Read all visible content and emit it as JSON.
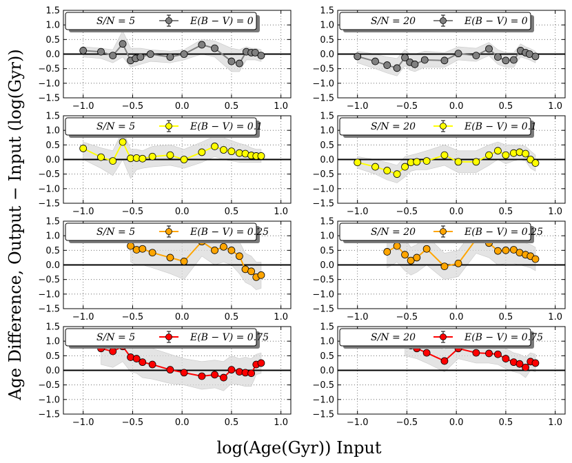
{
  "figure": {
    "ylabel": "Age Difference, Output − Input (log(Gyr))",
    "xlabel": "log(Age(Gyr)) Input"
  },
  "chart_data": [
    {
      "type": "line",
      "panel": "row1-left",
      "legend_sn": "S/N = 5",
      "legend_ebv": "E(B − V) = 0",
      "color": "#808080",
      "xlim": [
        -1.2,
        1.1
      ],
      "ylim": [
        -1.5,
        1.5
      ],
      "xticks": [
        "−1.0",
        "−0.5",
        "0.0",
        "0.5",
        "1.0"
      ],
      "yticks": [
        "1.5",
        "1.0",
        "0.5",
        "0.0",
        "−0.5",
        "−1.0",
        "−1.5"
      ],
      "x": [
        -1.0,
        -0.82,
        -0.7,
        -0.6,
        -0.52,
        -0.47,
        -0.42,
        -0.32,
        -0.12,
        0.02,
        0.2,
        0.33,
        0.5,
        0.58,
        0.65,
        0.7,
        0.74,
        0.8
      ],
      "y": [
        0.12,
        0.08,
        -0.05,
        0.35,
        -0.22,
        -0.15,
        -0.1,
        0.0,
        -0.1,
        0.0,
        0.32,
        0.2,
        -0.25,
        -0.32,
        0.08,
        0.05,
        0.05,
        -0.05
      ],
      "band_upper": [
        0.25,
        0.2,
        0.15,
        0.8,
        0.2,
        0.2,
        0.2,
        0.15,
        0.1,
        0.15,
        0.5,
        0.45,
        0.2,
        0.15,
        0.25,
        0.2,
        0.2,
        0.15
      ],
      "band_lower": [
        -0.1,
        -0.15,
        -0.3,
        -0.1,
        -0.45,
        -0.4,
        -0.35,
        -0.25,
        -0.3,
        -0.2,
        0.0,
        -0.1,
        -0.6,
        -0.6,
        -0.2,
        -0.2,
        -0.2,
        -0.25
      ]
    },
    {
      "type": "line",
      "panel": "row1-right",
      "legend_sn": "S/N = 20",
      "legend_ebv": "E(B − V) = 0",
      "color": "#808080",
      "xlim": [
        -1.2,
        1.1
      ],
      "ylim": [
        -1.5,
        1.5
      ],
      "xticks": [
        "−1.0",
        "−0.5",
        "0.0",
        "0.5",
        "1.0"
      ],
      "yticks": [
        "1.5",
        "1.0",
        "0.5",
        "0.0",
        "−0.5",
        "−1.0",
        "−1.5"
      ],
      "x": [
        -1.0,
        -0.82,
        -0.7,
        -0.6,
        -0.52,
        -0.47,
        -0.42,
        -0.32,
        -0.12,
        0.02,
        0.2,
        0.33,
        0.42,
        0.5,
        0.58,
        0.65,
        0.7,
        0.74,
        0.8
      ],
      "y": [
        -0.08,
        -0.25,
        -0.38,
        -0.48,
        -0.12,
        -0.28,
        -0.35,
        -0.2,
        -0.22,
        0.02,
        -0.05,
        0.18,
        -0.1,
        -0.22,
        -0.2,
        0.12,
        0.05,
        0.0,
        -0.08
      ],
      "band_upper": [
        0.1,
        0.0,
        -0.1,
        -0.15,
        0.15,
        0.0,
        0.0,
        0.1,
        0.05,
        0.25,
        0.2,
        0.4,
        0.15,
        0.05,
        0.05,
        0.35,
        0.25,
        0.2,
        0.1
      ],
      "band_lower": [
        -0.3,
        -0.5,
        -0.65,
        -0.75,
        -0.4,
        -0.55,
        -0.6,
        -0.45,
        -0.45,
        -0.2,
        -0.25,
        -0.05,
        -0.35,
        -0.45,
        -0.45,
        -0.1,
        -0.15,
        -0.2,
        -0.3
      ]
    },
    {
      "type": "line",
      "panel": "row2-left",
      "legend_sn": "S/N = 5",
      "legend_ebv": "E(B − V) = 0.1",
      "color": "#ffff00",
      "xlim": [
        -1.2,
        1.1
      ],
      "ylim": [
        -1.5,
        1.5
      ],
      "xticks": [
        "−1.0",
        "−0.5",
        "0.0",
        "0.5",
        "1.0"
      ],
      "yticks": [
        "1.5",
        "1.0",
        "0.5",
        "0.0",
        "−0.5",
        "−1.0",
        "−1.5"
      ],
      "x": [
        -1.0,
        -0.82,
        -0.7,
        -0.6,
        -0.52,
        -0.46,
        -0.4,
        -0.3,
        -0.12,
        0.02,
        0.2,
        0.33,
        0.42,
        0.5,
        0.58,
        0.64,
        0.7,
        0.75,
        0.8
      ],
      "y": [
        0.38,
        0.08,
        -0.05,
        0.6,
        0.04,
        0.05,
        0.03,
        0.1,
        0.15,
        0.0,
        0.25,
        0.45,
        0.33,
        0.28,
        0.22,
        0.2,
        0.14,
        0.12,
        0.12
      ],
      "band_upper": [
        0.6,
        0.4,
        0.3,
        1.0,
        0.35,
        0.35,
        0.3,
        0.45,
        0.5,
        0.35,
        0.6,
        0.8,
        0.75,
        0.65,
        0.55,
        0.5,
        0.4,
        0.35,
        0.35
      ],
      "band_lower": [
        0.0,
        -0.3,
        -0.55,
        0.0,
        -0.65,
        -0.35,
        -0.3,
        -0.25,
        -0.2,
        -0.3,
        -0.1,
        0.1,
        0.0,
        -0.05,
        -0.1,
        -0.1,
        -0.1,
        -0.1,
        -0.1
      ]
    },
    {
      "type": "line",
      "panel": "row2-right",
      "legend_sn": "S/N = 20",
      "legend_ebv": "E(B − V) = 0.1",
      "color": "#ffff00",
      "xlim": [
        -1.2,
        1.1
      ],
      "ylim": [
        -1.5,
        1.5
      ],
      "xticks": [
        "−1.0",
        "−0.5",
        "0.0",
        "0.5",
        "1.0"
      ],
      "yticks": [
        "1.5",
        "1.0",
        "0.5",
        "0.0",
        "−0.5",
        "−1.0",
        "−1.5"
      ],
      "x": [
        -1.0,
        -0.82,
        -0.7,
        -0.6,
        -0.52,
        -0.46,
        -0.4,
        -0.3,
        -0.12,
        0.02,
        0.2,
        0.33,
        0.42,
        0.5,
        0.58,
        0.64,
        0.7,
        0.75,
        0.8
      ],
      "y": [
        -0.1,
        -0.25,
        -0.38,
        -0.5,
        -0.25,
        -0.1,
        -0.08,
        -0.05,
        0.15,
        -0.08,
        -0.08,
        0.15,
        0.3,
        0.15,
        0.22,
        0.25,
        0.2,
        0.0,
        -0.12
      ],
      "band_upper": [
        0.1,
        0.0,
        -0.1,
        -0.2,
        0.1,
        0.15,
        0.2,
        0.3,
        0.5,
        0.3,
        0.3,
        0.5,
        0.6,
        0.5,
        0.5,
        0.5,
        0.45,
        0.3,
        0.15
      ],
      "band_lower": [
        -0.3,
        -0.5,
        -0.7,
        -0.8,
        -0.6,
        -0.4,
        -0.35,
        -0.35,
        -0.2,
        -0.45,
        -0.45,
        -0.2,
        0.0,
        -0.15,
        -0.05,
        0.0,
        -0.05,
        -0.3,
        -0.4
      ]
    },
    {
      "type": "line",
      "panel": "row3-left",
      "legend_sn": "S/N = 5",
      "legend_ebv": "E(B − V) = 0.25",
      "color": "#ffa500",
      "xlim": [
        -1.2,
        1.1
      ],
      "ylim": [
        -1.5,
        1.5
      ],
      "xticks": [
        "−1.0",
        "−0.5",
        "0.0",
        "0.5",
        "1.0"
      ],
      "yticks": [
        "1.5",
        "1.0",
        "0.5",
        "0.0",
        "−0.5",
        "−1.0",
        "−1.5"
      ],
      "x": [
        -0.52,
        -0.46,
        -0.4,
        -0.3,
        -0.12,
        0.02,
        0.2,
        0.33,
        0.42,
        0.5,
        0.58,
        0.64,
        0.7,
        0.75,
        0.8
      ],
      "y": [
        0.65,
        0.52,
        0.55,
        0.42,
        0.25,
        0.12,
        0.8,
        0.5,
        0.62,
        0.5,
        0.3,
        -0.15,
        -0.22,
        -0.42,
        -0.35
      ],
      "band_upper": [
        1.4,
        1.3,
        1.2,
        1.1,
        0.9,
        0.9,
        1.3,
        1.1,
        1.15,
        1.0,
        0.8,
        0.4,
        0.3,
        0.1,
        0.1
      ],
      "band_lower": [
        0.1,
        0.0,
        0.0,
        -0.1,
        -0.3,
        -0.5,
        0.3,
        0.0,
        0.1,
        0.0,
        -0.3,
        -0.6,
        -0.7,
        -0.85,
        -0.8
      ]
    },
    {
      "type": "line",
      "panel": "row3-right",
      "legend_sn": "S/N = 20",
      "legend_ebv": "E(B − V) = 0.25",
      "color": "#ffa500",
      "xlim": [
        -1.2,
        1.1
      ],
      "ylim": [
        -1.5,
        1.5
      ],
      "xticks": [
        "−1.0",
        "−0.5",
        "0.0",
        "0.5",
        "1.0"
      ],
      "yticks": [
        "1.5",
        "1.0",
        "0.5",
        "0.0",
        "−0.5",
        "−1.0",
        "−1.5"
      ],
      "x": [
        -0.7,
        -0.6,
        -0.52,
        -0.46,
        -0.4,
        -0.3,
        -0.12,
        0.02,
        0.2,
        0.33,
        0.42,
        0.5,
        0.58,
        0.64,
        0.7,
        0.75,
        0.8
      ],
      "y": [
        0.45,
        0.65,
        0.35,
        0.15,
        0.25,
        0.55,
        -0.05,
        0.05,
        0.88,
        0.75,
        0.48,
        0.5,
        0.52,
        0.42,
        0.35,
        0.3,
        0.2
      ],
      "band_upper": [
        1.0,
        1.2,
        0.9,
        0.6,
        0.7,
        1.0,
        0.4,
        0.5,
        1.3,
        1.2,
        0.9,
        0.9,
        0.95,
        0.85,
        0.75,
        0.7,
        0.6
      ],
      "band_lower": [
        -0.1,
        0.1,
        -0.2,
        -0.35,
        -0.25,
        0.0,
        -0.5,
        -0.4,
        0.4,
        0.25,
        0.0,
        0.05,
        0.05,
        0.0,
        -0.05,
        -0.1,
        -0.2
      ]
    },
    {
      "type": "line",
      "panel": "row4-left",
      "legend_sn": "S/N = 5",
      "legend_ebv": "E(B − V) = 0.75",
      "color": "#ff0000",
      "xlim": [
        -1.2,
        1.1
      ],
      "ylim": [
        -1.5,
        1.5
      ],
      "xticks": [
        "−1.0",
        "−0.5",
        "0.0",
        "0.5",
        "1.0"
      ],
      "yticks": [
        "1.5",
        "1.0",
        "0.5",
        "0.0",
        "−0.5",
        "−1.0",
        "−1.5"
      ],
      "x": [
        -0.82,
        -0.7,
        -0.6,
        -0.52,
        -0.46,
        -0.4,
        -0.3,
        -0.12,
        0.02,
        0.2,
        0.33,
        0.42,
        0.5,
        0.58,
        0.64,
        0.7,
        0.75,
        0.8
      ],
      "y": [
        0.75,
        0.65,
        0.82,
        0.45,
        0.4,
        0.28,
        0.2,
        0.02,
        -0.08,
        -0.2,
        -0.15,
        -0.25,
        0.02,
        -0.05,
        -0.08,
        -0.1,
        0.2,
        0.25
      ],
      "band_upper": [
        1.3,
        1.25,
        1.3,
        1.0,
        0.9,
        0.8,
        0.75,
        0.55,
        0.4,
        0.3,
        0.35,
        0.3,
        0.5,
        0.4,
        0.45,
        0.4,
        0.55,
        0.6
      ],
      "band_lower": [
        0.2,
        0.1,
        0.3,
        -0.05,
        -0.1,
        -0.25,
        -0.3,
        -0.45,
        -0.5,
        -0.65,
        -0.6,
        -0.7,
        -0.45,
        -0.5,
        -0.55,
        -0.55,
        -0.15,
        -0.1
      ]
    },
    {
      "type": "line",
      "panel": "row4-right",
      "legend_sn": "S/N = 20",
      "legend_ebv": "E(B − V) = 0.75",
      "color": "#ff0000",
      "xlim": [
        -1.2,
        1.1
      ],
      "ylim": [
        -1.5,
        1.5
      ],
      "xticks": [
        "−1.0",
        "−0.5",
        "0.0",
        "0.5",
        "1.0"
      ],
      "yticks": [
        "1.5",
        "1.0",
        "0.5",
        "0.0",
        "−0.5",
        "−1.0",
        "−1.5"
      ],
      "x": [
        -0.52,
        -0.46,
        -0.4,
        -0.3,
        -0.12,
        0.02,
        0.2,
        0.33,
        0.42,
        0.5,
        0.58,
        0.64,
        0.7,
        0.75,
        0.8
      ],
      "y": [
        0.9,
        0.85,
        0.75,
        0.6,
        0.32,
        0.75,
        0.6,
        0.58,
        0.55,
        0.4,
        0.28,
        0.22,
        0.1,
        0.3,
        0.25
      ],
      "band_upper": [
        1.3,
        1.2,
        1.1,
        0.95,
        0.7,
        1.1,
        0.95,
        0.9,
        0.9,
        0.75,
        0.6,
        0.55,
        0.45,
        0.6,
        0.55
      ],
      "band_lower": [
        0.5,
        0.45,
        0.4,
        0.25,
        -0.05,
        0.4,
        0.25,
        0.25,
        0.2,
        0.05,
        -0.05,
        -0.1,
        -0.25,
        0.0,
        -0.05
      ]
    }
  ]
}
